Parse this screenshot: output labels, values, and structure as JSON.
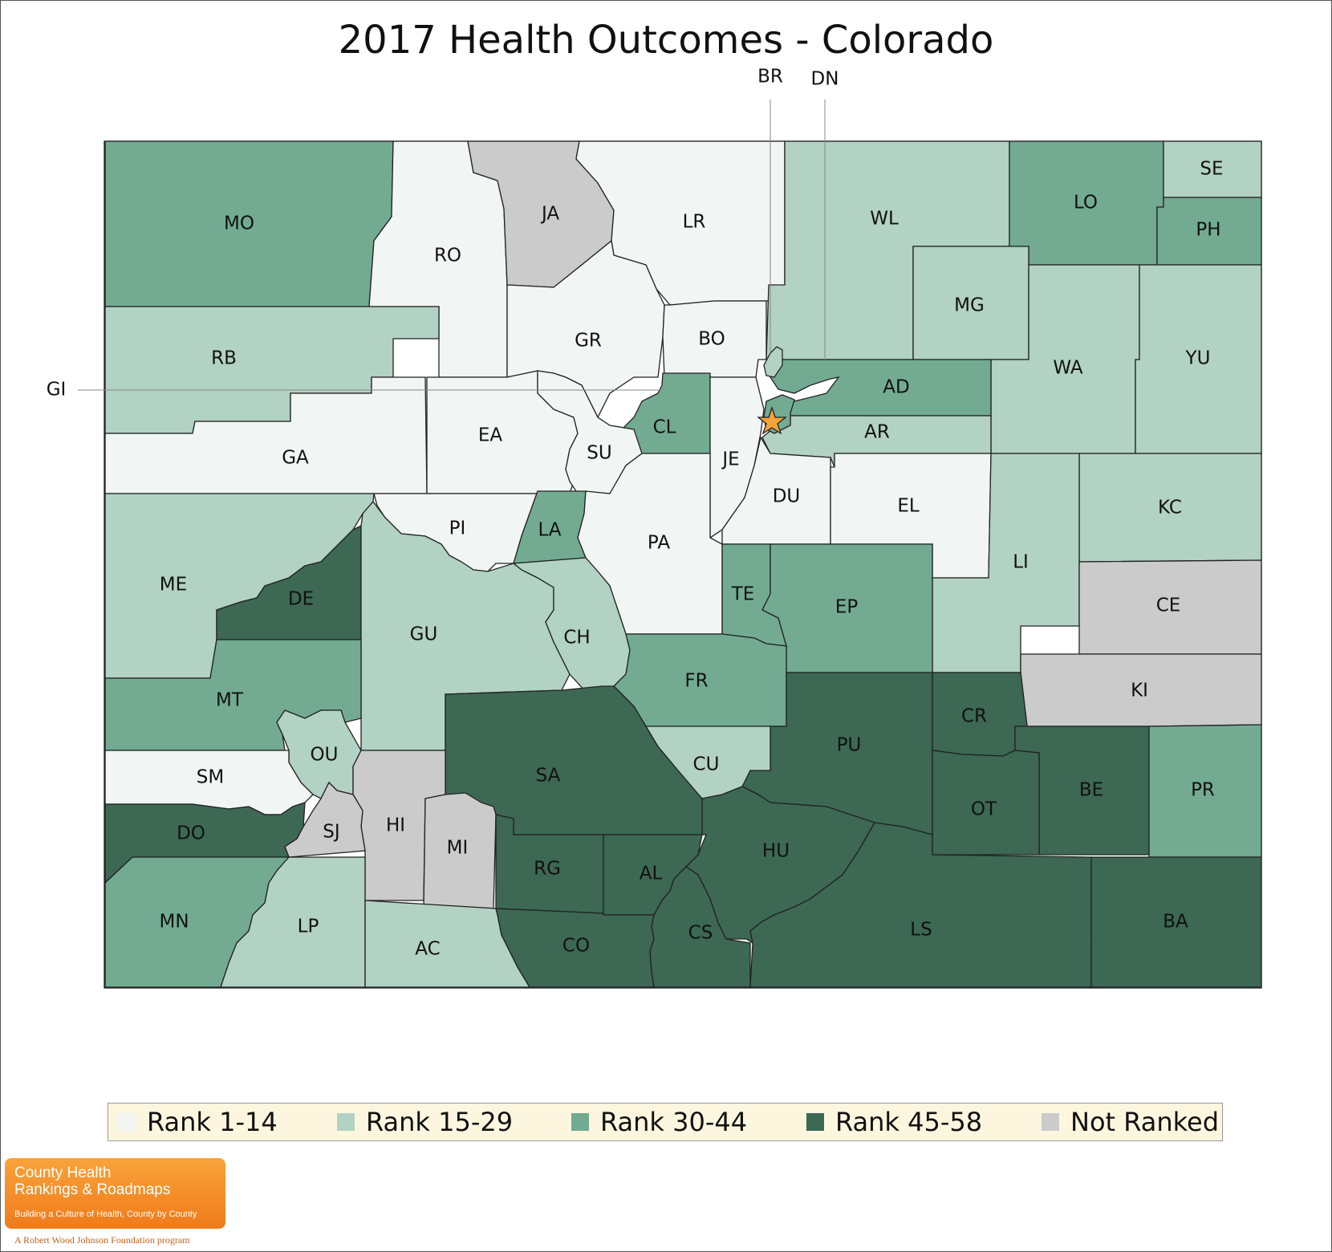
{
  "title": "2017 Health Outcomes - Colorado",
  "colors": {
    "rank_1_14": "#f1f5f3",
    "rank_15_29": "#b2d2c3",
    "rank_30_44": "#72ab92",
    "rank_45_58": "#3c6854",
    "not_ranked": "#cbcbcb",
    "star": "#f5a23a"
  },
  "legend": [
    {
      "label": "Rank 1-14",
      "color": "#f1f5f3"
    },
    {
      "label": "Rank 15-29",
      "color": "#b2d2c3"
    },
    {
      "label": "Rank 30-44",
      "color": "#72ab92"
    },
    {
      "label": "Rank 45-58",
      "color": "#3c6854"
    },
    {
      "label": "Not Ranked",
      "color": "#cbcbcb"
    }
  ],
  "counties": [
    {
      "abbr": "MO",
      "rank_group": "Rank 30-44"
    },
    {
      "abbr": "RO",
      "rank_group": "Rank 1-14"
    },
    {
      "abbr": "JA",
      "rank_group": "Not Ranked"
    },
    {
      "abbr": "LR",
      "rank_group": "Rank 1-14"
    },
    {
      "abbr": "WL",
      "rank_group": "Rank 15-29"
    },
    {
      "abbr": "LO",
      "rank_group": "Rank 30-44"
    },
    {
      "abbr": "SE",
      "rank_group": "Rank 15-29"
    },
    {
      "abbr": "PH",
      "rank_group": "Rank 30-44"
    },
    {
      "abbr": "RB",
      "rank_group": "Rank 15-29"
    },
    {
      "abbr": "GR",
      "rank_group": "Rank 1-14"
    },
    {
      "abbr": "BO",
      "rank_group": "Rank 1-14"
    },
    {
      "abbr": "MG",
      "rank_group": "Rank 15-29"
    },
    {
      "abbr": "WA",
      "rank_group": "Rank 15-29"
    },
    {
      "abbr": "YU",
      "rank_group": "Rank 15-29"
    },
    {
      "abbr": "AD",
      "rank_group": "Rank 30-44"
    },
    {
      "abbr": "GA",
      "rank_group": "Rank 1-14"
    },
    {
      "abbr": "EA",
      "rank_group": "Rank 1-14"
    },
    {
      "abbr": "CL",
      "rank_group": "Rank 30-44"
    },
    {
      "abbr": "SU",
      "rank_group": "Rank 1-14"
    },
    {
      "abbr": "JE",
      "rank_group": "Rank 1-14"
    },
    {
      "abbr": "AR",
      "rank_group": "Rank 15-29"
    },
    {
      "abbr": "DU",
      "rank_group": "Rank 1-14"
    },
    {
      "abbr": "EL",
      "rank_group": "Rank 1-14"
    },
    {
      "abbr": "KC",
      "rank_group": "Rank 15-29"
    },
    {
      "abbr": "PI",
      "rank_group": "Rank 1-14"
    },
    {
      "abbr": "LA",
      "rank_group": "Rank 30-44"
    },
    {
      "abbr": "PA",
      "rank_group": "Rank 1-14"
    },
    {
      "abbr": "LI",
      "rank_group": "Rank 15-29"
    },
    {
      "abbr": "ME",
      "rank_group": "Rank 15-29"
    },
    {
      "abbr": "DE",
      "rank_group": "Rank 45-58"
    },
    {
      "abbr": "TE",
      "rank_group": "Rank 30-44"
    },
    {
      "abbr": "EP",
      "rank_group": "Rank 30-44"
    },
    {
      "abbr": "CE",
      "rank_group": "Not Ranked"
    },
    {
      "abbr": "GU",
      "rank_group": "Rank 15-29"
    },
    {
      "abbr": "CH",
      "rank_group": "Rank 15-29"
    },
    {
      "abbr": "FR",
      "rank_group": "Rank 30-44"
    },
    {
      "abbr": "KI",
      "rank_group": "Not Ranked"
    },
    {
      "abbr": "MT",
      "rank_group": "Rank 30-44"
    },
    {
      "abbr": "CR",
      "rank_group": "Rank 45-58"
    },
    {
      "abbr": "PU",
      "rank_group": "Rank 45-58"
    },
    {
      "abbr": "OU",
      "rank_group": "Rank 15-29"
    },
    {
      "abbr": "SA",
      "rank_group": "Rank 45-58"
    },
    {
      "abbr": "CU",
      "rank_group": "Rank 15-29"
    },
    {
      "abbr": "SM",
      "rank_group": "Rank 1-14"
    },
    {
      "abbr": "BE",
      "rank_group": "Rank 45-58"
    },
    {
      "abbr": "PR",
      "rank_group": "Rank 30-44"
    },
    {
      "abbr": "OT",
      "rank_group": "Rank 45-58"
    },
    {
      "abbr": "HI",
      "rank_group": "Not Ranked"
    },
    {
      "abbr": "SJ",
      "rank_group": "Not Ranked"
    },
    {
      "abbr": "DO",
      "rank_group": "Rank 45-58"
    },
    {
      "abbr": "MI",
      "rank_group": "Not Ranked"
    },
    {
      "abbr": "HU",
      "rank_group": "Rank 45-58"
    },
    {
      "abbr": "RG",
      "rank_group": "Rank 45-58"
    },
    {
      "abbr": "AL",
      "rank_group": "Rank 45-58"
    },
    {
      "abbr": "MN",
      "rank_group": "Rank 30-44"
    },
    {
      "abbr": "LP",
      "rank_group": "Rank 15-29"
    },
    {
      "abbr": "AC",
      "rank_group": "Rank 15-29"
    },
    {
      "abbr": "CO",
      "rank_group": "Rank 45-58"
    },
    {
      "abbr": "CS",
      "rank_group": "Rank 45-58"
    },
    {
      "abbr": "LS",
      "rank_group": "Rank 45-58"
    },
    {
      "abbr": "BA",
      "rank_group": "Rank 45-58"
    }
  ],
  "callouts": {
    "br": "BR",
    "dn": "DN",
    "gi": "GI"
  },
  "logo": {
    "line1": "County Health",
    "line2": "Rankings & Roadmaps",
    "line3": "Building a Culture of Health, County by County",
    "tagline": "A Robert Wood Johnson Foundation program"
  }
}
